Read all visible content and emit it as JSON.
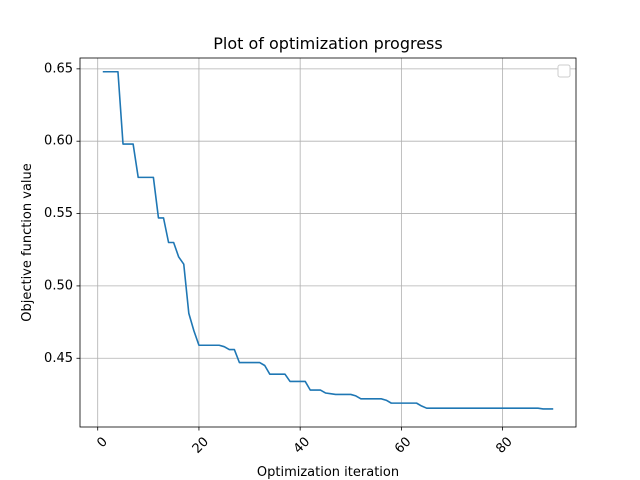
{
  "chart_data": {
    "type": "line",
    "title": "Plot of optimization progress",
    "xlabel": "Optimization iteration",
    "ylabel": "Objective function value",
    "xlim": [
      -3.5,
      94.5
    ],
    "ylim": [
      0.4025,
      0.6575
    ],
    "xticks": [
      0,
      20,
      40,
      60,
      80
    ],
    "xtick_labels": [
      "0",
      "20",
      "40",
      "60",
      "80"
    ],
    "xtick_rotation": 45,
    "yticks": [
      0.45,
      0.5,
      0.55,
      0.6,
      0.65
    ],
    "ytick_labels": [
      "0.45",
      "0.50",
      "0.55",
      "0.60",
      "0.65"
    ],
    "grid": true,
    "legend": {
      "placement": "top-right",
      "entries": []
    },
    "series": [
      {
        "color": "#1f77b4",
        "x": [
          1,
          2,
          3,
          4,
          5,
          6,
          7,
          8,
          9,
          10,
          11,
          12,
          13,
          14,
          15,
          16,
          17,
          18,
          19,
          20,
          21,
          22,
          23,
          24,
          25,
          26,
          27,
          28,
          29,
          30,
          31,
          32,
          33,
          34,
          35,
          36,
          37,
          38,
          39,
          40,
          41,
          42,
          43,
          44,
          45,
          46,
          47,
          48,
          49,
          50,
          51,
          52,
          53,
          54,
          55,
          56,
          57,
          58,
          59,
          60,
          61,
          62,
          63,
          64,
          65,
          66,
          67,
          68,
          69,
          70,
          71,
          72,
          73,
          74,
          75,
          76,
          77,
          78,
          79,
          80,
          81,
          82,
          83,
          84,
          85,
          86,
          87,
          88,
          89,
          90
        ],
        "y": [
          0.648,
          0.648,
          0.648,
          0.648,
          0.598,
          0.598,
          0.598,
          0.575,
          0.575,
          0.575,
          0.575,
          0.547,
          0.547,
          0.53,
          0.53,
          0.52,
          0.515,
          0.481,
          0.469,
          0.459,
          0.459,
          0.459,
          0.459,
          0.459,
          0.458,
          0.456,
          0.456,
          0.447,
          0.447,
          0.447,
          0.447,
          0.447,
          0.445,
          0.439,
          0.439,
          0.439,
          0.439,
          0.434,
          0.434,
          0.434,
          0.434,
          0.428,
          0.428,
          0.428,
          0.426,
          0.4255,
          0.425,
          0.425,
          0.425,
          0.425,
          0.424,
          0.422,
          0.422,
          0.422,
          0.422,
          0.422,
          0.421,
          0.419,
          0.419,
          0.419,
          0.419,
          0.419,
          0.419,
          0.417,
          0.4155,
          0.4155,
          0.4155,
          0.4155,
          0.4155,
          0.4155,
          0.4155,
          0.4155,
          0.4155,
          0.4155,
          0.4155,
          0.4155,
          0.4155,
          0.4155,
          0.4155,
          0.4155,
          0.4155,
          0.4155,
          0.4155,
          0.4155,
          0.4155,
          0.4155,
          0.4155,
          0.415,
          0.415,
          0.415
        ]
      }
    ]
  }
}
